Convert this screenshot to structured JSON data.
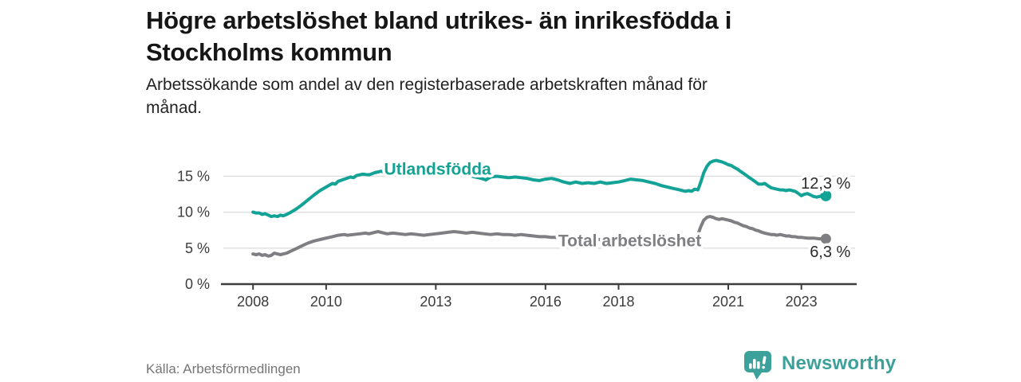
{
  "header": {
    "title": "Högre arbetslöshet bland utrikes- än inrikesfödda i\nStockholms kommun",
    "subtitle": "Arbetssökande som andel av den registerbaserade arbetskraften månad för\nmånad."
  },
  "colors": {
    "accent_teal": "#12a296",
    "series_gray": "#7e7e83",
    "grid": "#dedede",
    "axis": "#3d3d3d",
    "value_text": "#2b2b2b",
    "brand_teal": "#3ba19a"
  },
  "chart_data": {
    "type": "line",
    "title": "Högre arbetslöshet bland utrikes- än inrikesfödda i Stockholms kommun",
    "subtitle": "Arbetssökande som andel av den registerbaserade arbetskraften månad för månad.",
    "xlabel": "",
    "ylabel": "",
    "ylim": [
      0,
      18
    ],
    "x_range": [
      2007.1,
      2024.5
    ],
    "grid": true,
    "legend_position": "inline-labels",
    "y_ticks": [
      {
        "value": 0,
        "label": "0 %"
      },
      {
        "value": 5,
        "label": "5 %"
      },
      {
        "value": 10,
        "label": "10 %"
      },
      {
        "value": 15,
        "label": "15 %"
      }
    ],
    "x_ticks": [
      {
        "year": 2008,
        "label": "2008"
      },
      {
        "year": 2010,
        "label": "2010"
      },
      {
        "year": 2013,
        "label": "2013"
      },
      {
        "year": 2016,
        "label": "2016"
      },
      {
        "year": 2018,
        "label": "2018"
      },
      {
        "year": 2021,
        "label": "2021"
      },
      {
        "year": 2023,
        "label": "2023"
      }
    ],
    "series": [
      {
        "name": "Utlandsfödda",
        "color": "#12a296",
        "line_width": 4,
        "dot_radius": 7,
        "end_label": "12,3 %",
        "end_value": 12.3,
        "end_label_pos": "above",
        "label_anchor": {
          "year": 2013.05,
          "value": 16.0,
          "align": "middle"
        },
        "points": [
          [
            2008.0,
            10.0
          ],
          [
            2008.08,
            9.9
          ],
          [
            2008.17,
            9.9
          ],
          [
            2008.25,
            9.7
          ],
          [
            2008.33,
            9.8
          ],
          [
            2008.42,
            9.6
          ],
          [
            2008.5,
            9.4
          ],
          [
            2008.58,
            9.5
          ],
          [
            2008.67,
            9.4
          ],
          [
            2008.75,
            9.6
          ],
          [
            2008.83,
            9.5
          ],
          [
            2008.92,
            9.7
          ],
          [
            2009.0,
            9.9
          ],
          [
            2009.17,
            10.4
          ],
          [
            2009.33,
            11.0
          ],
          [
            2009.5,
            11.7
          ],
          [
            2009.67,
            12.4
          ],
          [
            2009.83,
            13.0
          ],
          [
            2010.0,
            13.5
          ],
          [
            2010.17,
            14.0
          ],
          [
            2010.25,
            13.9
          ],
          [
            2010.33,
            14.3
          ],
          [
            2010.5,
            14.6
          ],
          [
            2010.67,
            14.9
          ],
          [
            2010.75,
            14.8
          ],
          [
            2010.83,
            15.1
          ],
          [
            2011.0,
            15.3
          ],
          [
            2011.17,
            15.2
          ],
          [
            2011.33,
            15.5
          ],
          [
            2011.5,
            15.7
          ],
          [
            2011.58,
            15.6
          ],
          [
            2011.75,
            15.7
          ],
          [
            2011.92,
            15.8
          ],
          [
            2012.08,
            15.7
          ],
          [
            2012.25,
            15.8
          ],
          [
            2012.42,
            15.7
          ],
          [
            2012.58,
            15.8
          ],
          [
            2012.75,
            15.6
          ],
          [
            2012.92,
            15.7
          ],
          [
            2013.08,
            15.8
          ],
          [
            2013.25,
            15.7
          ],
          [
            2013.42,
            15.6
          ],
          [
            2013.58,
            15.5
          ],
          [
            2013.75,
            15.3
          ],
          [
            2013.92,
            15.1
          ],
          [
            2014.08,
            14.9
          ],
          [
            2014.25,
            14.7
          ],
          [
            2014.37,
            14.5
          ],
          [
            2014.5,
            14.9
          ],
          [
            2014.67,
            15.0
          ],
          [
            2014.83,
            14.9
          ],
          [
            2015.0,
            14.8
          ],
          [
            2015.17,
            14.9
          ],
          [
            2015.33,
            14.8
          ],
          [
            2015.5,
            14.7
          ],
          [
            2015.67,
            14.5
          ],
          [
            2015.83,
            14.4
          ],
          [
            2016.0,
            14.6
          ],
          [
            2016.17,
            14.7
          ],
          [
            2016.33,
            14.5
          ],
          [
            2016.5,
            14.2
          ],
          [
            2016.67,
            14.0
          ],
          [
            2016.83,
            14.2
          ],
          [
            2017.0,
            14.0
          ],
          [
            2017.17,
            14.1
          ],
          [
            2017.33,
            14.0
          ],
          [
            2017.5,
            14.2
          ],
          [
            2017.67,
            14.0
          ],
          [
            2017.83,
            14.1
          ],
          [
            2018.0,
            14.2
          ],
          [
            2018.17,
            14.4
          ],
          [
            2018.33,
            14.6
          ],
          [
            2018.5,
            14.5
          ],
          [
            2018.67,
            14.4
          ],
          [
            2018.83,
            14.2
          ],
          [
            2019.0,
            14.0
          ],
          [
            2019.17,
            13.7
          ],
          [
            2019.33,
            13.5
          ],
          [
            2019.5,
            13.3
          ],
          [
            2019.67,
            13.1
          ],
          [
            2019.83,
            12.9
          ],
          [
            2019.92,
            13.0
          ],
          [
            2020.0,
            12.9
          ],
          [
            2020.08,
            13.2
          ],
          [
            2020.17,
            13.1
          ],
          [
            2020.25,
            14.2
          ],
          [
            2020.33,
            15.5
          ],
          [
            2020.42,
            16.4
          ],
          [
            2020.5,
            16.9
          ],
          [
            2020.58,
            17.1
          ],
          [
            2020.67,
            17.2
          ],
          [
            2020.75,
            17.1
          ],
          [
            2020.83,
            17.0
          ],
          [
            2020.92,
            16.8
          ],
          [
            2021.0,
            16.6
          ],
          [
            2021.08,
            16.5
          ],
          [
            2021.17,
            16.2
          ],
          [
            2021.25,
            16.0
          ],
          [
            2021.33,
            15.7
          ],
          [
            2021.42,
            15.4
          ],
          [
            2021.5,
            15.1
          ],
          [
            2021.58,
            14.8
          ],
          [
            2021.67,
            14.5
          ],
          [
            2021.75,
            14.2
          ],
          [
            2021.83,
            13.9
          ],
          [
            2021.92,
            13.9
          ],
          [
            2022.0,
            14.0
          ],
          [
            2022.08,
            13.7
          ],
          [
            2022.17,
            13.4
          ],
          [
            2022.25,
            13.3
          ],
          [
            2022.33,
            13.2
          ],
          [
            2022.42,
            13.1
          ],
          [
            2022.5,
            13.1
          ],
          [
            2022.58,
            13.0
          ],
          [
            2022.67,
            13.1
          ],
          [
            2022.75,
            13.0
          ],
          [
            2022.83,
            12.9
          ],
          [
            2022.92,
            12.6
          ],
          [
            2023.0,
            12.3
          ],
          [
            2023.08,
            12.5
          ],
          [
            2023.17,
            12.6
          ],
          [
            2023.25,
            12.4
          ],
          [
            2023.33,
            12.2
          ],
          [
            2023.42,
            12.1
          ],
          [
            2023.5,
            12.2
          ],
          [
            2023.58,
            12.2
          ],
          [
            2023.67,
            12.3
          ]
        ]
      },
      {
        "name": "Total arbetslöshet",
        "color": "#7e7e83",
        "line_width": 4,
        "dot_radius": 6.5,
        "end_label": "6,3 %",
        "end_value": 6.3,
        "end_label_pos": "below",
        "label_anchor": {
          "year": 2016.35,
          "value": 6.05,
          "align": "start"
        },
        "points": [
          [
            2008.0,
            4.2
          ],
          [
            2008.08,
            4.1
          ],
          [
            2008.17,
            4.2
          ],
          [
            2008.25,
            4.0
          ],
          [
            2008.33,
            4.1
          ],
          [
            2008.42,
            3.9
          ],
          [
            2008.5,
            4.0
          ],
          [
            2008.58,
            4.3
          ],
          [
            2008.67,
            4.2
          ],
          [
            2008.75,
            4.1
          ],
          [
            2008.83,
            4.2
          ],
          [
            2008.92,
            4.3
          ],
          [
            2009.0,
            4.5
          ],
          [
            2009.17,
            4.9
          ],
          [
            2009.33,
            5.3
          ],
          [
            2009.5,
            5.7
          ],
          [
            2009.67,
            6.0
          ],
          [
            2009.83,
            6.2
          ],
          [
            2010.0,
            6.4
          ],
          [
            2010.17,
            6.6
          ],
          [
            2010.33,
            6.8
          ],
          [
            2010.5,
            6.9
          ],
          [
            2010.58,
            6.8
          ],
          [
            2010.75,
            6.9
          ],
          [
            2010.92,
            7.0
          ],
          [
            2011.08,
            7.1
          ],
          [
            2011.17,
            7.0
          ],
          [
            2011.33,
            7.2
          ],
          [
            2011.42,
            7.3
          ],
          [
            2011.5,
            7.2
          ],
          [
            2011.67,
            7.0
          ],
          [
            2011.83,
            7.1
          ],
          [
            2012.0,
            7.0
          ],
          [
            2012.17,
            6.9
          ],
          [
            2012.33,
            7.0
          ],
          [
            2012.5,
            6.9
          ],
          [
            2012.67,
            6.8
          ],
          [
            2012.83,
            6.9
          ],
          [
            2013.0,
            7.0
          ],
          [
            2013.17,
            7.1
          ],
          [
            2013.33,
            7.2
          ],
          [
            2013.5,
            7.3
          ],
          [
            2013.67,
            7.2
          ],
          [
            2013.83,
            7.1
          ],
          [
            2014.0,
            7.2
          ],
          [
            2014.17,
            7.1
          ],
          [
            2014.33,
            7.0
          ],
          [
            2014.5,
            6.9
          ],
          [
            2014.67,
            7.0
          ],
          [
            2014.83,
            6.9
          ],
          [
            2015.0,
            6.9
          ],
          [
            2015.17,
            6.8
          ],
          [
            2015.33,
            6.9
          ],
          [
            2015.5,
            6.8
          ],
          [
            2015.67,
            6.7
          ],
          [
            2015.83,
            6.6
          ],
          [
            2016.0,
            6.6
          ],
          [
            2016.17,
            6.5
          ],
          [
            2016.33,
            6.5
          ],
          [
            2016.5,
            6.4
          ],
          [
            2016.67,
            6.4
          ],
          [
            2016.83,
            6.3
          ],
          [
            2017.0,
            6.3
          ],
          [
            2017.25,
            6.3
          ],
          [
            2017.5,
            6.2
          ],
          [
            2017.75,
            6.2
          ],
          [
            2018.0,
            6.1
          ],
          [
            2018.25,
            6.1
          ],
          [
            2018.5,
            6.0
          ],
          [
            2018.75,
            6.0
          ],
          [
            2019.0,
            5.9
          ],
          [
            2019.25,
            5.9
          ],
          [
            2019.5,
            5.8
          ],
          [
            2019.75,
            5.9
          ],
          [
            2020.0,
            6.0
          ],
          [
            2020.08,
            6.2
          ],
          [
            2020.17,
            6.9
          ],
          [
            2020.25,
            8.0
          ],
          [
            2020.33,
            8.9
          ],
          [
            2020.42,
            9.3
          ],
          [
            2020.5,
            9.4
          ],
          [
            2020.58,
            9.3
          ],
          [
            2020.67,
            9.1
          ],
          [
            2020.75,
            9.0
          ],
          [
            2020.83,
            9.1
          ],
          [
            2020.92,
            9.0
          ],
          [
            2021.0,
            8.9
          ],
          [
            2021.08,
            8.8
          ],
          [
            2021.17,
            8.6
          ],
          [
            2021.25,
            8.5
          ],
          [
            2021.33,
            8.3
          ],
          [
            2021.42,
            8.1
          ],
          [
            2021.5,
            8.0
          ],
          [
            2021.58,
            7.8
          ],
          [
            2021.67,
            7.7
          ],
          [
            2021.75,
            7.5
          ],
          [
            2021.83,
            7.4
          ],
          [
            2021.92,
            7.2
          ],
          [
            2022.0,
            7.1
          ],
          [
            2022.08,
            7.0
          ],
          [
            2022.17,
            6.9
          ],
          [
            2022.25,
            6.9
          ],
          [
            2022.33,
            6.8
          ],
          [
            2022.42,
            6.9
          ],
          [
            2022.5,
            6.8
          ],
          [
            2022.58,
            6.7
          ],
          [
            2022.67,
            6.7
          ],
          [
            2022.75,
            6.6
          ],
          [
            2022.83,
            6.6
          ],
          [
            2022.92,
            6.5
          ],
          [
            2023.0,
            6.5
          ],
          [
            2023.17,
            6.4
          ],
          [
            2023.33,
            6.4
          ],
          [
            2023.5,
            6.3
          ],
          [
            2023.67,
            6.3
          ]
        ]
      }
    ]
  },
  "footer": {
    "source": "Källa: Arbetsförmedlingen",
    "brand": "Newsworthy"
  }
}
